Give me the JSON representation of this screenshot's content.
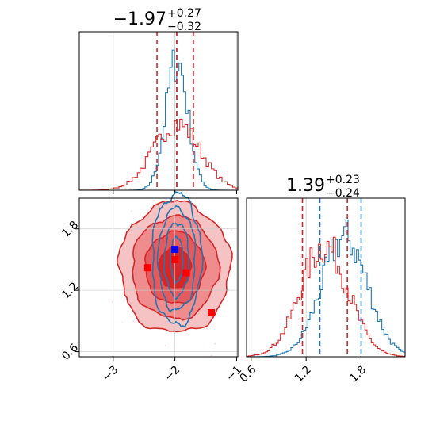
{
  "chart_data": {
    "type": "corner",
    "colors": {
      "blue": "#1f77b4",
      "red": "#d62728",
      "marker_blue": "#0000ff",
      "marker_red": "#ff0000",
      "grid": "#cccccc"
    },
    "panels": [
      {
        "id": "hist1",
        "type": "histogram",
        "title": {
          "value": "−1.97",
          "sup": "+0.27",
          "sub": "−0.32"
        },
        "xlim": [
          -3.55,
          -0.98
        ],
        "grid_x": [
          -3,
          -2,
          -1
        ],
        "series": [
          {
            "name": "blue",
            "center": -1.97,
            "sigma": 0.18,
            "peak": 0.82,
            "bins": 70,
            "quantiles": [
              -1.97
            ]
          },
          {
            "name": "red",
            "center": -1.97,
            "sigma": 0.38,
            "peak": 0.42,
            "bins": 60,
            "quantiles": [
              -2.29,
              -1.97,
              -1.7
            ]
          }
        ]
      },
      {
        "id": "hist2",
        "type": "histogram",
        "title": {
          "value": "1.39",
          "sup": "+0.23",
          "sub": "−0.24"
        },
        "xlim": [
          0.55,
          2.28
        ],
        "grid_x": [
          0.6,
          1.2,
          1.8
        ],
        "x_ticks": [
          {
            "value": 0.6,
            "label": "0.6"
          },
          {
            "value": 1.2,
            "label": "1.2"
          },
          {
            "value": 1.8,
            "label": "1.8"
          }
        ],
        "series": [
          {
            "name": "blue",
            "center": 1.62,
            "sigma": 0.25,
            "peak": 0.75,
            "bins": 75,
            "quantiles": [
              1.35,
              1.8
            ]
          },
          {
            "name": "red",
            "center": 1.4,
            "sigma": 0.26,
            "peak": 0.7,
            "bins": 75,
            "quantiles": [
              1.16,
              1.65
            ]
          }
        ]
      },
      {
        "id": "contour",
        "type": "2d-contour",
        "xlim": [
          -3.55,
          -0.98
        ],
        "ylim": [
          0.55,
          2.1
        ],
        "x_ticks": [
          {
            "value": -3,
            "label": "−3"
          },
          {
            "value": -2,
            "label": "−2"
          },
          {
            "value": -1,
            "label": "−1"
          }
        ],
        "y_ticks": [
          {
            "value": 0.6,
            "label": "0.6"
          },
          {
            "value": 1.2,
            "label": "1.2"
          },
          {
            "value": 1.8,
            "label": "1.8"
          }
        ],
        "red_contours": {
          "center": [
            -2.0,
            1.42
          ],
          "radii": [
            [
              0.9,
              0.64
            ],
            [
              0.7,
              0.5
            ],
            [
              0.48,
              0.35
            ],
            [
              0.26,
              0.2
            ]
          ],
          "fills": [
            "#f6c3c4",
            "#ee8c8e",
            "#e55a5c",
            "#d62728"
          ]
        },
        "blue_contours": {
          "center": [
            -1.97,
            1.5
          ],
          "radii": [
            [
              0.4,
              0.64
            ],
            [
              0.3,
              0.5
            ],
            [
              0.2,
              0.36
            ],
            [
              0.1,
              0.22
            ]
          ]
        },
        "markers": [
          {
            "x": -2.0,
            "y": 1.6,
            "color": "blue"
          },
          {
            "x": -2.44,
            "y": 1.42,
            "color": "red"
          },
          {
            "x": -2.0,
            "y": 1.5,
            "color": "red"
          },
          {
            "x": -1.82,
            "y": 1.37,
            "color": "red"
          },
          {
            "x": -1.41,
            "y": 0.98,
            "color": "red"
          }
        ]
      }
    ]
  }
}
